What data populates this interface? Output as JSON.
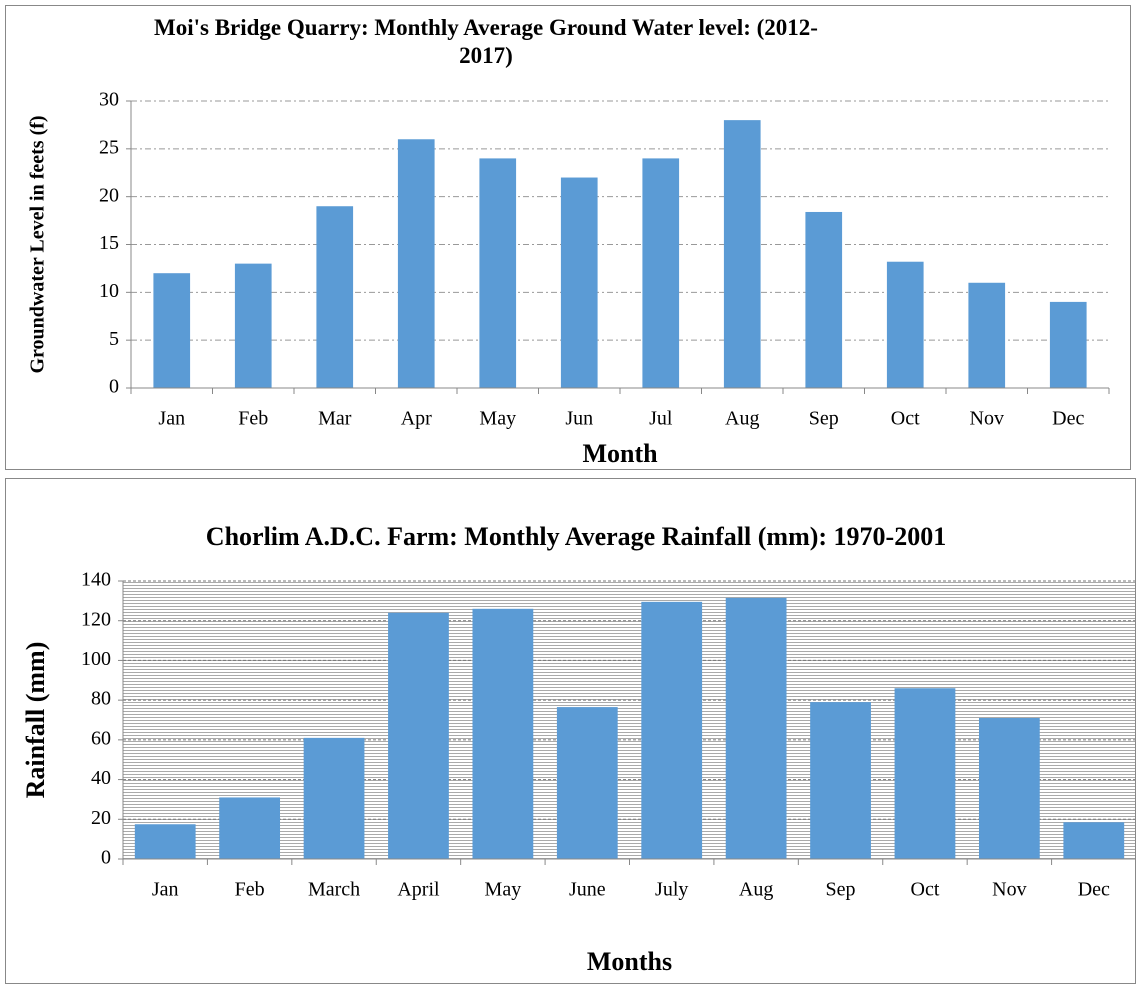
{
  "chart_data": [
    {
      "type": "bar",
      "title": "Moi's Bridge Quarry: Monthly Average Ground Water level: (2012-2017)",
      "x_label": "Month",
      "y_label": "Groundwater Level in feets (f)",
      "categories": [
        "Jan",
        "Feb",
        "Mar",
        "Apr",
        "May",
        "Jun",
        "Jul",
        "Aug",
        "Sep",
        "Oct",
        "Nov",
        "Dec"
      ],
      "values": [
        12,
        13,
        19,
        26,
        24,
        22,
        24,
        28,
        18.4,
        13.2,
        11,
        9
      ],
      "color": "#5b9bd5",
      "ylim": [
        0,
        30
      ],
      "yticks": [
        0,
        5,
        10,
        15,
        20,
        25,
        30
      ],
      "grid": true
    },
    {
      "type": "bar",
      "title": "Chorlim A.D.C. Farm: Monthly Average Rainfall (mm): 1970-2001",
      "x_label": "Months",
      "y_label": "Rainfall (mm)",
      "categories": [
        "Jan",
        "Feb",
        "March",
        "April",
        "May",
        "June",
        "July",
        "Aug",
        "Sep",
        "Oct",
        "Nov",
        "Dec"
      ],
      "values": [
        17.5,
        31,
        61,
        124,
        126,
        76.5,
        129.5,
        131.5,
        79,
        86,
        71,
        18.5
      ],
      "color": "#5b9bd5",
      "ylim": [
        0,
        140
      ],
      "yticks": [
        0,
        20,
        40,
        60,
        80,
        100,
        120,
        140
      ],
      "grid": true
    }
  ]
}
